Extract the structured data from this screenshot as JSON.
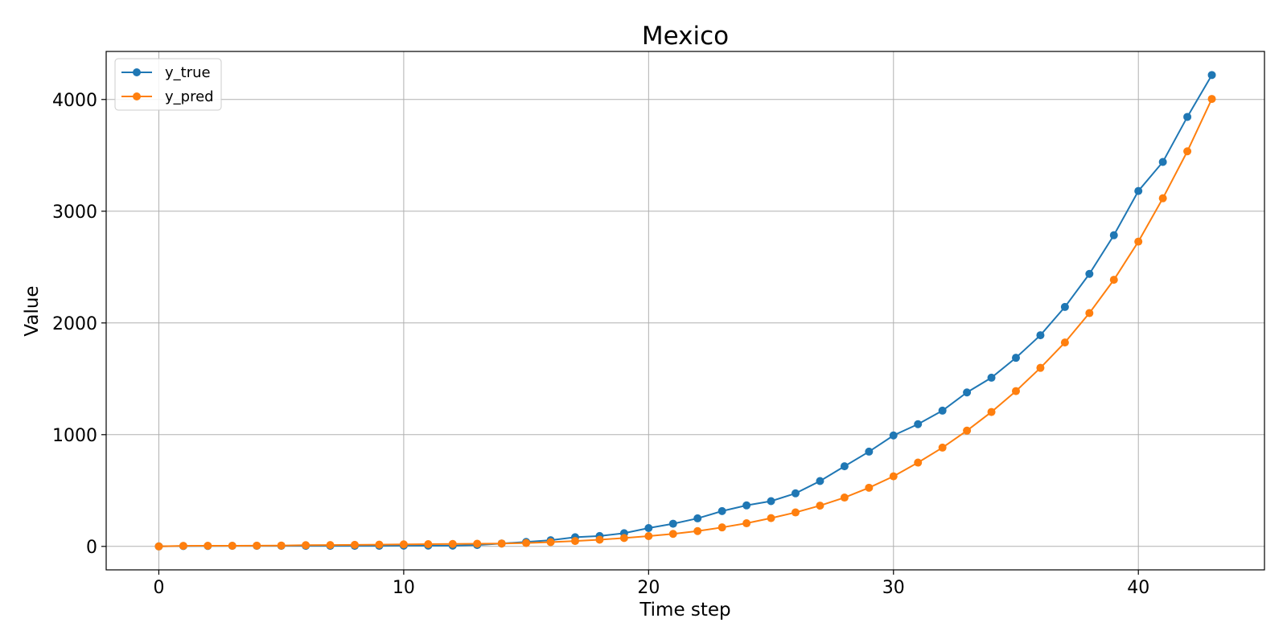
{
  "chart_data": {
    "type": "line",
    "title": "Mexico",
    "xlabel": "Time step",
    "ylabel": "Value",
    "xlim": [
      -2.15,
      45.15
    ],
    "ylim": [
      -210,
      4430
    ],
    "xticks": [
      0,
      10,
      20,
      30,
      40
    ],
    "yticks": [
      0,
      1000,
      2000,
      3000,
      4000
    ],
    "grid": true,
    "legend_position": "top-left",
    "x": [
      0,
      1,
      2,
      3,
      4,
      5,
      6,
      7,
      8,
      9,
      10,
      11,
      12,
      13,
      14,
      15,
      16,
      17,
      18,
      19,
      20,
      21,
      22,
      23,
      24,
      25,
      26,
      27,
      28,
      29,
      30,
      31,
      32,
      33,
      34,
      35,
      36,
      37,
      38,
      39,
      40,
      41,
      42,
      43
    ],
    "series": [
      {
        "name": "y_true",
        "color": "#1f77b4",
        "values": [
          0,
          3,
          4,
          5,
          5,
          5,
          5,
          5,
          5,
          5,
          7,
          7,
          7,
          12,
          26,
          40,
          55,
          82,
          93,
          118,
          164,
          203,
          251,
          316,
          367,
          405,
          475,
          585,
          717,
          848,
          993,
          1094,
          1215,
          1378,
          1510,
          1688,
          1890,
          2143,
          2439,
          2785,
          3181,
          3441,
          3844,
          4219
        ]
      },
      {
        "name": "y_pred",
        "color": "#ff7f0e",
        "values": [
          0,
          5,
          6,
          6,
          7,
          8,
          11,
          12,
          14,
          16,
          18,
          20,
          22,
          24,
          26,
          30,
          38,
          48,
          60,
          75,
          92,
          112,
          137,
          170,
          207,
          253,
          304,
          365,
          437,
          525,
          627,
          750,
          884,
          1036,
          1203,
          1390,
          1598,
          1825,
          2088,
          2386,
          2728,
          3116,
          3536,
          4005
        ]
      }
    ]
  }
}
